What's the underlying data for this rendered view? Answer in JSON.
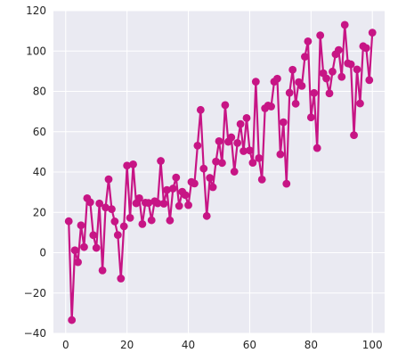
{
  "chart_data": {
    "type": "line",
    "title": "",
    "xlabel": "",
    "ylabel": "",
    "xlim": [
      -4,
      104
    ],
    "ylim": [
      -40,
      120
    ],
    "x_ticks": [
      0,
      20,
      40,
      60,
      80,
      100
    ],
    "y_ticks": [
      -40,
      -20,
      0,
      20,
      40,
      60,
      80,
      100,
      120
    ],
    "x_tick_labels": [
      "0",
      "20",
      "40",
      "60",
      "80",
      "100"
    ],
    "y_tick_labels": [
      "−40",
      "−20",
      "0",
      "20",
      "40",
      "60",
      "80",
      "100",
      "120"
    ],
    "grid": true,
    "background_color": "#eaeaf2",
    "grid_color": "#ffffff",
    "series": [
      {
        "color": "#c71585",
        "marker": "circle",
        "x": [
          1,
          2,
          3,
          4,
          5,
          6,
          7,
          8,
          9,
          10,
          11,
          12,
          13,
          14,
          15,
          16,
          17,
          18,
          19,
          20,
          21,
          22,
          23,
          24,
          25,
          26,
          27,
          28,
          29,
          30,
          31,
          32,
          33,
          34,
          35,
          36,
          37,
          38,
          39,
          40,
          41,
          42,
          43,
          44,
          45,
          46,
          47,
          48,
          49,
          50,
          51,
          52,
          53,
          54,
          55,
          56,
          57,
          58,
          59,
          60,
          61,
          62,
          63,
          64,
          65,
          66,
          67,
          68,
          69,
          70,
          71,
          72,
          73,
          74,
          75,
          76,
          77,
          78,
          79,
          80,
          81,
          82,
          83,
          84,
          85,
          86,
          87,
          88,
          89,
          90,
          91,
          92,
          93,
          94,
          95,
          96,
          97,
          98,
          99,
          100
        ],
        "y": [
          15.6,
          -33.4,
          1.2,
          -4.7,
          13.6,
          2.8,
          27,
          25,
          8.7,
          2.4,
          24.4,
          -8.8,
          22.4,
          36.4,
          21.6,
          15.5,
          8.8,
          -12.8,
          13.1,
          43.2,
          17.3,
          43.8,
          24.5,
          27,
          14.2,
          24.8,
          24.7,
          16.1,
          25.5,
          24.5,
          45.5,
          24.3,
          31.1,
          16,
          31.8,
          37.3,
          23.2,
          30.2,
          28.6,
          23.6,
          35.1,
          34.3,
          53.1,
          70.8,
          41.7,
          18.2,
          37.1,
          32.5,
          45.2,
          55.3,
          44.5,
          73.2,
          55,
          57.2,
          40.2,
          54.4,
          63.8,
          50.4,
          66.8,
          50.7,
          44.6,
          84.8,
          46.9,
          36.3,
          71.6,
          73,
          72.5,
          84.8,
          86.3,
          48.8,
          64.7,
          34.2,
          79.3,
          90.7,
          73.9,
          84.6,
          82.7,
          97.2,
          104.8,
          67.1,
          79.2,
          51.9,
          107.8,
          89,
          86.4,
          79,
          89.8,
          98.4,
          100.5,
          87.2,
          113,
          93.9,
          93.4,
          58.3,
          90.9,
          74,
          102.4,
          101.5,
          85.6,
          109.1
        ]
      }
    ]
  }
}
